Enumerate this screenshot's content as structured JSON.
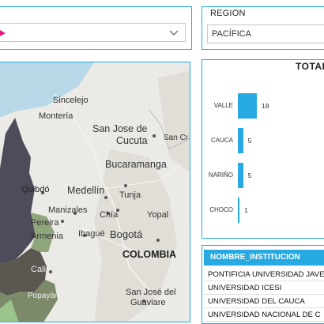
{
  "filter_left": {
    "value": ""
  },
  "region": {
    "label": "REGION",
    "value": "PACÍFICA"
  },
  "chart": {
    "title": "TOTAL",
    "chart_data": {
      "type": "bar",
      "orientation": "horizontal",
      "categories": [
        "VALLE",
        "CAUCA",
        "NARIÑO",
        "CHOCO"
      ],
      "values": [
        18,
        5,
        5,
        1
      ],
      "value_labels": [
        "18",
        "5",
        "5",
        "1"
      ],
      "color": "#27a9e1"
    }
  },
  "map": {
    "country_label": "COLOMBIA",
    "cities": [
      "Sincelejo",
      "Montería",
      "San Jose de",
      "Cucuta",
      "San Cr",
      "Bucaramanga",
      "Quibdó",
      "Medellín",
      "Tunja",
      "Manizales",
      "Chía",
      "Yopal",
      "Pereira",
      "Armenia",
      "Ibagué",
      "Bogotá",
      "Cali",
      "Popayán",
      "San José del",
      "Guaviare"
    ]
  },
  "table": {
    "header": "NOMBRE_INSTITUCION",
    "rows": [
      "PONTIFICIA UNIVERSIDAD JAVE",
      "UNIVERSIDAD ICESI",
      "UNIVERSIDAD DEL CAUCA",
      "UNIVERSIDAD NACIONAL DE C"
    ]
  },
  "colors": {
    "accent": "#27a9e1",
    "chevron_left": "#e3177d"
  }
}
